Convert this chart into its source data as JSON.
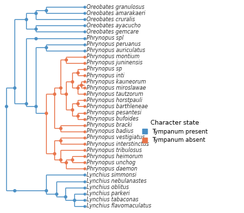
{
  "taxa": [
    "Oreobates granulosus",
    "Oreobates amarakaeri",
    "Oreobates cruralis",
    "Oreobates ayacucho",
    "Oreobates gemcare",
    "Phrynopus spl",
    "Phrynopus peruanus",
    "Phrynopus auriculatus",
    "Phrynopus montium",
    "Phrynopus juninensis",
    "Phrynopus sp",
    "Phrynopus inti",
    "Phrynopus kauneorum",
    "Phrynopus miroslawae",
    "Phrynopus tautzorum",
    "Phrynopus horstpauli",
    "Phrynopus barthleneae",
    "Phrynopus pesantesi",
    "Phrynopus bufoides",
    "Phrynopus bracki",
    "Phrynopus badius",
    "Phrynopus vestigiatus",
    "Phrynopus interstinctus",
    "Phrynopus tribulosus",
    "Phrynopus heimorum",
    "Phrynopus unchog",
    "Phrynopus daemon",
    "Lynchius simmonsi",
    "Lynchius nebulanastes",
    "Lynchius oblitus",
    "Lynchius parkeri",
    "Lynchius tabaconas",
    "Lynchius flavomaculatus"
  ],
  "tip_colors": [
    "blue",
    "blue",
    "blue",
    "blue",
    "blue",
    "blue",
    "blue",
    "blue",
    "orange",
    "orange",
    "orange",
    "orange",
    "orange",
    "orange",
    "orange",
    "orange",
    "orange",
    "orange",
    "orange",
    "orange",
    "orange",
    "orange",
    "orange",
    "orange",
    "orange",
    "orange",
    "orange",
    "blue",
    "blue",
    "blue",
    "blue",
    "blue",
    "blue"
  ],
  "blue": "#4a8fc4",
  "orange": "#e8744a",
  "legend_title": "Character state",
  "legend_blue": "Tympanum present",
  "legend_orange": "Tympanum absent",
  "font_size": 5.5,
  "legend_title_fontsize": 6.5,
  "legend_fontsize": 6.0
}
